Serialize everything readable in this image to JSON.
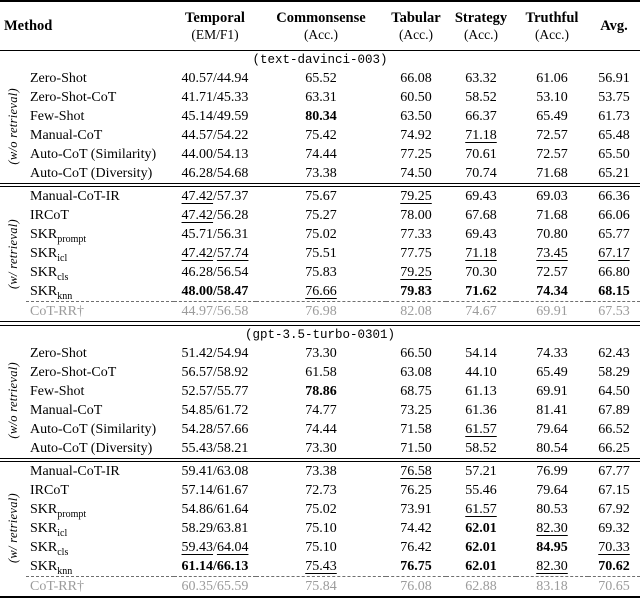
{
  "table": {
    "colors": {
      "muted_row": "#9b9b9b",
      "text": "#000000",
      "background": "#ffffff"
    },
    "columns": [
      {
        "id": "method",
        "label": "Method",
        "sub": ""
      },
      {
        "id": "temporal",
        "label": "Temporal",
        "sub": "(EM/F1)"
      },
      {
        "id": "commonsense",
        "label": "Commonsense",
        "sub": "(Acc.)"
      },
      {
        "id": "tabular",
        "label": "Tabular",
        "sub": "(Acc.)"
      },
      {
        "id": "strategy",
        "label": "Strategy",
        "sub": "(Acc.)"
      },
      {
        "id": "truthful",
        "label": "Truthful",
        "sub": "(Acc.)"
      },
      {
        "id": "avg",
        "label": "Avg.",
        "sub": ""
      }
    ],
    "sections": [
      {
        "model_label": "(text-davinci-003)",
        "groups": [
          {
            "side_label": "(w/o retrieval)",
            "rows": [
              {
                "method": "Zero-Shot",
                "cells": [
                  "40.57/44.94",
                  "65.52",
                  "66.08",
                  "63.32",
                  "61.06",
                  "56.91"
                ]
              },
              {
                "method": "Zero-Shot-CoT",
                "cells": [
                  "41.71/45.33",
                  "63.31",
                  "60.50",
                  "58.52",
                  "53.10",
                  "53.75"
                ]
              },
              {
                "method": "Few-Shot",
                "cells": [
                  "45.14/49.59",
                  "*80.34*",
                  "63.50",
                  "66.37",
                  "65.49",
                  "61.73"
                ]
              },
              {
                "method": "Manual-CoT",
                "cells": [
                  "44.57/54.22",
                  "75.42",
                  "74.92",
                  "_71.18_",
                  "72.57",
                  "65.48"
                ]
              },
              {
                "method": "Auto-CoT (Similarity)",
                "cells": [
                  "44.00/54.13",
                  "74.44",
                  "77.25",
                  "70.61",
                  "72.57",
                  "65.50"
                ]
              },
              {
                "method": "Auto-CoT (Diversity)",
                "cells": [
                  "46.28/54.68",
                  "73.38",
                  "74.50",
                  "70.74",
                  "71.68",
                  "65.21"
                ]
              }
            ]
          },
          {
            "side_label": "(w/ retrieval)",
            "rows": [
              {
                "method": "Manual-CoT-IR",
                "cells": [
                  "_47.42_/57.37",
                  "75.67",
                  "_79.25_",
                  "69.43",
                  "69.03",
                  "66.36"
                ]
              },
              {
                "method": "IRCoT",
                "cells": [
                  "_47.42_/56.28",
                  "75.27",
                  "78.00",
                  "67.68",
                  "71.68",
                  "66.06"
                ]
              },
              {
                "method": "SKR~prompt~",
                "cells": [
                  "45.71/56.31",
                  "75.02",
                  "77.33",
                  "69.43",
                  "70.80",
                  "65.77"
                ]
              },
              {
                "method": "SKR~icl~",
                "cells": [
                  "_47.42_/_57.74_",
                  "75.51",
                  "77.75",
                  "_71.18_",
                  "_73.45_",
                  "_67.17_"
                ]
              },
              {
                "method": "SKR~cls~",
                "cells": [
                  "46.28/56.54",
                  "75.83",
                  "_79.25_",
                  "70.30",
                  "72.57",
                  "66.80"
                ]
              },
              {
                "method": "SKR~knn~",
                "cells": [
                  "*48.00/58.47*",
                  "_76.66_",
                  "*79.83*",
                  "*71.62*",
                  "*74.34*",
                  "*68.15*"
                ]
              },
              {
                "method": "CoT-RR†",
                "muted": true,
                "dashed_top": true,
                "cells": [
                  "44.97/56.58",
                  "76.98",
                  "82.08",
                  "74.67",
                  "69.91",
                  "67.53"
                ]
              }
            ]
          }
        ]
      },
      {
        "model_label": "(gpt-3.5-turbo-0301)",
        "groups": [
          {
            "side_label": "(w/o retrieval)",
            "rows": [
              {
                "method": "Zero-Shot",
                "cells": [
                  "51.42/54.94",
                  "73.30",
                  "66.50",
                  "54.14",
                  "74.33",
                  "62.43"
                ]
              },
              {
                "method": "Zero-Shot-CoT",
                "cells": [
                  "56.57/58.92",
                  "61.58",
                  "63.08",
                  "44.10",
                  "65.49",
                  "58.29"
                ]
              },
              {
                "method": "Few-Shot",
                "cells": [
                  "52.57/55.77",
                  "*78.86*",
                  "68.75",
                  "61.13",
                  "69.91",
                  "64.50"
                ]
              },
              {
                "method": "Manual-CoT",
                "cells": [
                  "54.85/61.72",
                  "74.77",
                  "73.25",
                  "61.36",
                  "81.41",
                  "67.89"
                ]
              },
              {
                "method": "Auto-CoT (Similarity)",
                "cells": [
                  "54.28/57.66",
                  "74.44",
                  "71.58",
                  "_61.57_",
                  "79.64",
                  "66.52"
                ]
              },
              {
                "method": "Auto-CoT (Diversity)",
                "cells": [
                  "55.43/58.21",
                  "73.30",
                  "71.50",
                  "58.52",
                  "80.54",
                  "66.25"
                ]
              }
            ]
          },
          {
            "side_label": "(w/ retrieval)",
            "rows": [
              {
                "method": "Manual-CoT-IR",
                "cells": [
                  "59.41/63.08",
                  "73.38",
                  "_76.58_",
                  "57.21",
                  "76.99",
                  "67.77"
                ]
              },
              {
                "method": "IRCoT",
                "cells": [
                  "57.14/61.67",
                  "72.73",
                  "76.25",
                  "55.46",
                  "79.64",
                  "67.15"
                ]
              },
              {
                "method": "SKR~prompt~",
                "cells": [
                  "54.86/61.64",
                  "75.02",
                  "73.91",
                  "_61.57_",
                  "80.53",
                  "67.92"
                ]
              },
              {
                "method": "SKR~icl~",
                "cells": [
                  "58.29/63.81",
                  "75.10",
                  "74.42",
                  "*62.01*",
                  "_82.30_",
                  "69.32"
                ]
              },
              {
                "method": "SKR~cls~",
                "cells": [
                  "_59.43_/_64.04_",
                  "75.10",
                  "76.42",
                  "*62.01*",
                  "*84.95*",
                  "_70.33_"
                ]
              },
              {
                "method": "SKR~knn~",
                "cells": [
                  "*61.14/66.13*",
                  "_75.43_",
                  "*76.75*",
                  "*62.01*",
                  "_82.30_",
                  "*70.62*"
                ]
              },
              {
                "method": "CoT-RR†",
                "muted": true,
                "dashed_top": true,
                "cells": [
                  "60.35/65.59",
                  "75.84",
                  "76.08",
                  "62.88",
                  "83.18",
                  "70.65"
                ]
              }
            ]
          }
        ]
      }
    ]
  }
}
